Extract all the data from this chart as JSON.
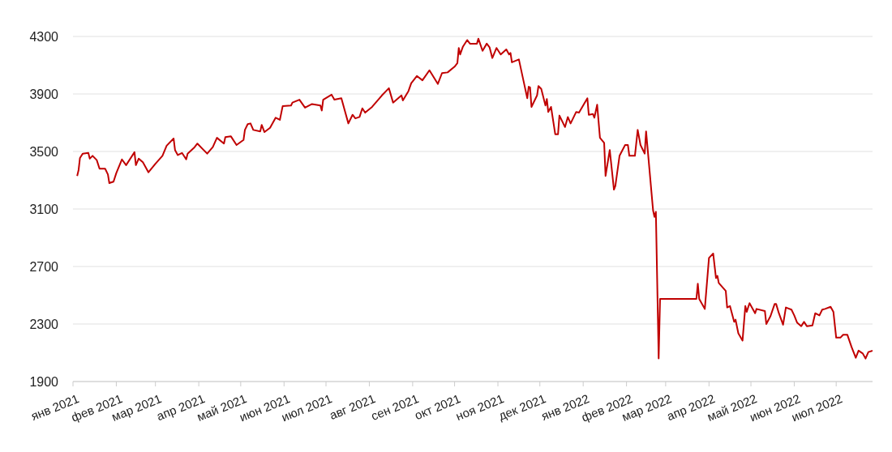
{
  "chart_data": {
    "type": "line",
    "x": [
      "2021-01-04",
      "2021-01-05",
      "2021-01-06",
      "2021-01-08",
      "2021-01-12",
      "2021-01-13",
      "2021-01-15",
      "2021-01-18",
      "2021-01-20",
      "2021-01-24",
      "2021-01-26",
      "2021-01-27",
      "2021-01-30",
      "2021-02-01",
      "2021-02-05",
      "2021-02-08",
      "2021-02-14",
      "2021-02-15",
      "2021-02-17",
      "2021-02-20",
      "2021-02-24",
      "2021-03-01",
      "2021-03-06",
      "2021-03-09",
      "2021-03-14",
      "2021-03-15",
      "2021-03-17",
      "2021-03-20",
      "2021-03-23",
      "2021-03-24",
      "2021-03-29",
      "2021-03-31",
      "2021-04-04",
      "2021-04-07",
      "2021-04-11",
      "2021-04-14",
      "2021-04-19",
      "2021-04-20",
      "2021-04-24",
      "2021-04-28",
      "2021-05-03",
      "2021-05-04",
      "2021-05-06",
      "2021-05-08",
      "2021-05-10",
      "2021-05-15",
      "2021-05-16",
      "2021-05-18",
      "2021-05-22",
      "2021-05-26",
      "2021-05-29",
      "2021-05-31",
      "2021-06-06",
      "2021-06-07",
      "2021-06-12",
      "2021-06-16",
      "2021-06-21",
      "2021-06-27",
      "2021-06-28",
      "2021-06-29",
      "2021-07-05",
      "2021-07-07",
      "2021-07-12",
      "2021-07-17",
      "2021-07-20",
      "2021-07-22",
      "2021-07-25",
      "2021-07-27",
      "2021-07-29",
      "2021-08-03",
      "2021-08-10",
      "2021-08-15",
      "2021-08-18",
      "2021-08-24",
      "2021-08-25",
      "2021-08-29",
      "2021-08-31",
      "2021-09-04",
      "2021-09-08",
      "2021-09-13",
      "2021-09-19",
      "2021-09-22",
      "2021-09-26",
      "2021-10-01",
      "2021-10-03",
      "2021-10-04",
      "2021-10-05",
      "2021-10-07",
      "2021-10-10",
      "2021-10-12",
      "2021-10-17",
      "2021-10-18",
      "2021-10-21",
      "2021-10-24",
      "2021-10-26",
      "2021-10-28",
      "2021-10-31",
      "2021-11-03",
      "2021-11-07",
      "2021-11-09",
      "2021-11-10",
      "2021-11-11",
      "2021-11-16",
      "2021-11-19",
      "2021-11-22",
      "2021-11-23",
      "2021-11-24",
      "2021-11-25",
      "2021-11-29",
      "2021-11-30",
      "2021-12-02",
      "2021-12-05",
      "2021-12-06",
      "2021-12-07",
      "2021-12-09",
      "2021-12-12",
      "2021-12-14",
      "2021-12-15",
      "2021-12-19",
      "2021-12-21",
      "2021-12-23",
      "2021-12-27",
      "2021-12-29",
      "2022-01-04",
      "2022-01-05",
      "2022-01-08",
      "2022-01-09",
      "2022-01-11",
      "2022-01-13",
      "2022-01-16",
      "2022-01-17",
      "2022-01-20",
      "2022-01-23",
      "2022-01-24",
      "2022-01-27",
      "2022-01-31",
      "2022-02-02",
      "2022-02-03",
      "2022-02-07",
      "2022-02-09",
      "2022-02-11",
      "2022-02-14",
      "2022-02-15",
      "2022-02-20",
      "2022-02-21",
      "2022-02-22",
      "2022-02-24",
      "2022-02-25",
      "2022-03-23",
      "2022-03-24",
      "2022-03-25",
      "2022-03-29",
      "2022-04-01",
      "2022-04-04",
      "2022-04-06",
      "2022-04-07",
      "2022-04-08",
      "2022-04-13",
      "2022-04-14",
      "2022-04-16",
      "2022-04-19",
      "2022-04-20",
      "2022-04-22",
      "2022-04-25",
      "2022-04-27",
      "2022-04-28",
      "2022-04-30",
      "2022-05-04",
      "2022-05-05",
      "2022-05-11",
      "2022-05-12",
      "2022-05-15",
      "2022-05-18",
      "2022-05-19",
      "2022-05-21",
      "2022-05-24",
      "2022-05-26",
      "2022-05-30",
      "2022-06-01",
      "2022-06-03",
      "2022-06-06",
      "2022-06-08",
      "2022-06-10",
      "2022-06-14",
      "2022-06-16",
      "2022-06-19",
      "2022-06-21",
      "2022-06-23",
      "2022-06-27",
      "2022-06-29",
      "2022-07-01",
      "2022-07-04",
      "2022-07-06",
      "2022-07-09",
      "2022-07-12",
      "2022-07-15",
      "2022-07-17",
      "2022-07-20",
      "2022-07-22",
      "2022-07-24",
      "2022-07-27"
    ],
    "series": [
      {
        "color": "#c00000",
        "values": [
          3330,
          3370,
          3455,
          3485,
          3490,
          3450,
          3470,
          3440,
          3380,
          3380,
          3340,
          3280,
          3290,
          3350,
          3445,
          3405,
          3495,
          3405,
          3450,
          3425,
          3355,
          3415,
          3470,
          3540,
          3590,
          3510,
          3475,
          3490,
          3445,
          3485,
          3530,
          3555,
          3515,
          3485,
          3530,
          3595,
          3555,
          3600,
          3605,
          3545,
          3580,
          3650,
          3690,
          3695,
          3650,
          3640,
          3685,
          3635,
          3665,
          3735,
          3720,
          3815,
          3820,
          3840,
          3860,
          3805,
          3830,
          3820,
          3785,
          3860,
          3895,
          3860,
          3870,
          3695,
          3755,
          3730,
          3740,
          3800,
          3770,
          3810,
          3890,
          3940,
          3840,
          3890,
          3855,
          3920,
          3975,
          4025,
          3995,
          4065,
          3970,
          4045,
          4050,
          4090,
          4115,
          4220,
          4175,
          4230,
          4275,
          4250,
          4250,
          4285,
          4200,
          4250,
          4225,
          4150,
          4220,
          4175,
          4210,
          4175,
          4185,
          4120,
          4140,
          4005,
          3870,
          3950,
          3945,
          3810,
          3890,
          3955,
          3935,
          3820,
          3865,
          3775,
          3810,
          3620,
          3620,
          3750,
          3670,
          3740,
          3695,
          3775,
          3770,
          3870,
          3755,
          3760,
          3735,
          3825,
          3595,
          3560,
          3330,
          3510,
          3235,
          3260,
          3470,
          3545,
          3545,
          3470,
          3470,
          3650,
          3545,
          3485,
          3640,
          3090,
          3045,
          3080,
          2060,
          2475,
          2475,
          2580,
          2475,
          2405,
          2760,
          2790,
          2620,
          2635,
          2585,
          2530,
          2415,
          2425,
          2315,
          2330,
          2235,
          2185,
          2425,
          2385,
          2445,
          2375,
          2405,
          2390,
          2300,
          2355,
          2440,
          2440,
          2375,
          2295,
          2415,
          2400,
          2360,
          2310,
          2285,
          2315,
          2285,
          2290,
          2375,
          2360,
          2400,
          2405,
          2420,
          2385,
          2205,
          2205,
          2225,
          2225,
          2140,
          2065,
          2115,
          2095,
          2060,
          2105,
          2115
        ]
      }
    ],
    "xlim": [
      "2021-01-01",
      "2022-07-27"
    ],
    "xticks": [
      {
        "value": "2021-01-01",
        "label": "янв 2021"
      },
      {
        "value": "2021-02-01",
        "label": "фев 2021"
      },
      {
        "value": "2021-03-01",
        "label": "мар 2021"
      },
      {
        "value": "2021-04-01",
        "label": "апр 2021"
      },
      {
        "value": "2021-05-01",
        "label": "май 2021"
      },
      {
        "value": "2021-06-01",
        "label": "июн 2021"
      },
      {
        "value": "2021-07-01",
        "label": "июл 2021"
      },
      {
        "value": "2021-08-01",
        "label": "авг 2021"
      },
      {
        "value": "2021-09-01",
        "label": "сен 2021"
      },
      {
        "value": "2021-10-01",
        "label": "окт 2021"
      },
      {
        "value": "2021-11-01",
        "label": "ноя 2021"
      },
      {
        "value": "2021-12-01",
        "label": "дек 2021"
      },
      {
        "value": "2022-01-01",
        "label": "янв 2022"
      },
      {
        "value": "2022-02-01",
        "label": "фев 2022"
      },
      {
        "value": "2022-03-01",
        "label": "мар 2022"
      },
      {
        "value": "2022-04-01",
        "label": "апр 2022"
      },
      {
        "value": "2022-05-01",
        "label": "май 2022"
      },
      {
        "value": "2022-06-01",
        "label": "июн 2022"
      },
      {
        "value": "2022-07-01",
        "label": "июл 2022"
      }
    ],
    "ylim": [
      1900,
      4300
    ],
    "yticks": [
      1900,
      2300,
      2700,
      3100,
      3500,
      3900,
      4300
    ],
    "grid": "y",
    "line_style": "solid"
  }
}
